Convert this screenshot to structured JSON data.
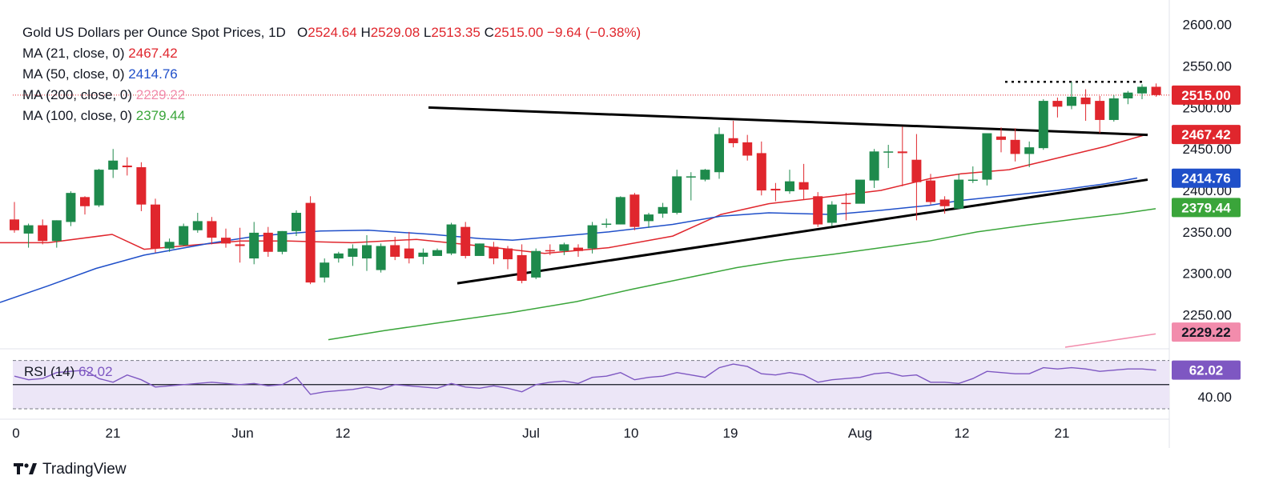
{
  "chart_data": {
    "type": "candlestick",
    "title": "Gold US Dollars per Ounce Spot Prices, 1D",
    "ohlc_summary": {
      "o_label": "O",
      "o": "2524.64",
      "h_label": "H",
      "h": "2529.08",
      "l_label": "L",
      "l": "2513.35",
      "c_label": "C",
      "c": "2515.00",
      "change": "−9.64 (−0.38%)"
    },
    "indicators": [
      {
        "label": "MA (21, close, 0)",
        "value": "2467.42",
        "color": "#e0262d"
      },
      {
        "label": "MA (50, close, 0)",
        "value": "2414.76",
        "color": "#1f4fc9"
      },
      {
        "label": "MA (200, close, 0)",
        "value": "2229.22",
        "color": "#f28cac"
      },
      {
        "label": "MA (100, close, 0)",
        "value": "2379.44",
        "color": "#3aa53a"
      }
    ],
    "price_axis": {
      "ticks": [
        "2600.00",
        "2550.00",
        "2500.00",
        "2450.00",
        "2400.00",
        "2350.00",
        "2300.00",
        "2250.00"
      ],
      "range": [
        2210,
        2620
      ]
    },
    "last_price_label": "2515.00",
    "x_labels": [
      "0",
      "21",
      "Jun",
      "12",
      "Jul",
      "10",
      "19",
      "Aug",
      "12",
      "21"
    ],
    "candles": [
      [
        2365,
        2386,
        2352,
        2349
      ],
      [
        2348,
        2360,
        2358,
        2331
      ],
      [
        2358,
        2365,
        2339,
        2335
      ],
      [
        2339,
        2364,
        2364,
        2331
      ],
      [
        2362,
        2399,
        2397,
        2357
      ],
      [
        2392,
        2393,
        2381,
        2371
      ],
      [
        2382,
        2426,
        2425,
        2380
      ],
      [
        2425,
        2450,
        2436,
        2415
      ],
      [
        2430,
        2440,
        2428,
        2418
      ],
      [
        2428,
        2434,
        2383,
        2375
      ],
      [
        2383,
        2390,
        2330,
        2325
      ],
      [
        2330,
        2342,
        2338,
        2326
      ],
      [
        2334,
        2360,
        2357,
        2333
      ],
      [
        2352,
        2373,
        2363,
        2349
      ],
      [
        2363,
        2368,
        2343,
        2335
      ],
      [
        2343,
        2354,
        2336,
        2331
      ],
      [
        2335,
        2355,
        2333,
        2313
      ],
      [
        2318,
        2362,
        2349,
        2311
      ],
      [
        2349,
        2356,
        2326,
        2320
      ],
      [
        2326,
        2351,
        2351,
        2323
      ],
      [
        2351,
        2376,
        2373,
        2345
      ],
      [
        2385,
        2393,
        2289,
        2287
      ],
      [
        2295,
        2318,
        2313,
        2289
      ],
      [
        2318,
        2326,
        2324,
        2313
      ],
      [
        2320,
        2335,
        2330,
        2309
      ],
      [
        2318,
        2346,
        2334,
        2303
      ],
      [
        2304,
        2336,
        2333,
        2301
      ],
      [
        2334,
        2344,
        2320,
        2316
      ],
      [
        2330,
        2350,
        2318,
        2312
      ],
      [
        2320,
        2330,
        2325,
        2311
      ],
      [
        2321,
        2330,
        2328,
        2322
      ],
      [
        2324,
        2361,
        2359,
        2322
      ],
      [
        2356,
        2362,
        2321,
        2318
      ],
      [
        2321,
        2336,
        2336,
        2323
      ],
      [
        2332,
        2338,
        2318,
        2311
      ],
      [
        2330,
        2333,
        2317,
        2305
      ],
      [
        2322,
        2335,
        2291,
        2288
      ],
      [
        2295,
        2330,
        2327,
        2293
      ],
      [
        2328,
        2335,
        2327,
        2322
      ],
      [
        2327,
        2337,
        2335,
        2322
      ],
      [
        2331,
        2335,
        2327,
        2320
      ],
      [
        2330,
        2362,
        2358,
        2324
      ],
      [
        2359,
        2366,
        2360,
        2355
      ],
      [
        2359,
        2393,
        2392,
        2359
      ],
      [
        2395,
        2397,
        2356,
        2352
      ],
      [
        2363,
        2373,
        2371,
        2355
      ],
      [
        2372,
        2385,
        2380,
        2367
      ],
      [
        2373,
        2425,
        2417,
        2371
      ],
      [
        2416,
        2422,
        2417,
        2388
      ],
      [
        2413,
        2426,
        2425,
        2411
      ],
      [
        2422,
        2476,
        2468,
        2414
      ],
      [
        2463,
        2484,
        2457,
        2452
      ],
      [
        2458,
        2467,
        2442,
        2436
      ],
      [
        2445,
        2459,
        2400,
        2394
      ],
      [
        2402,
        2409,
        2400,
        2387
      ],
      [
        2399,
        2425,
        2411,
        2396
      ],
      [
        2410,
        2432,
        2401,
        2389
      ],
      [
        2393,
        2398,
        2359,
        2356
      ],
      [
        2361,
        2387,
        2383,
        2357
      ],
      [
        2385,
        2397,
        2384,
        2364
      ],
      [
        2384,
        2409,
        2413,
        2385
      ],
      [
        2412,
        2450,
        2447,
        2403
      ],
      [
        2447,
        2455,
        2447,
        2427
      ],
      [
        2447,
        2477,
        2445,
        2405
      ],
      [
        2437,
        2468,
        2410,
        2364
      ],
      [
        2412,
        2420,
        2386,
        2383
      ],
      [
        2389,
        2393,
        2381,
        2372
      ],
      [
        2378,
        2420,
        2413,
        2378
      ],
      [
        2412,
        2429,
        2413,
        2409
      ],
      [
        2413,
        2467,
        2469,
        2406
      ],
      [
        2465,
        2476,
        2461,
        2446
      ],
      [
        2461,
        2475,
        2444,
        2435
      ],
      [
        2444,
        2459,
        2452,
        2428
      ],
      [
        2451,
        2510,
        2508,
        2449
      ],
      [
        2508,
        2512,
        2501,
        2488
      ],
      [
        2502,
        2531,
        2513,
        2498
      ],
      [
        2512,
        2522,
        2504,
        2484
      ],
      [
        2508,
        2514,
        2485,
        2469
      ],
      [
        2485,
        2515,
        2511,
        2483
      ],
      [
        2511,
        2520,
        2518,
        2504
      ],
      [
        2517,
        2528,
        2525,
        2510
      ],
      [
        2525,
        2529,
        2515,
        2513
      ]
    ],
    "moving_averages": {
      "ma21": [
        [
          0,
          2337
        ],
        [
          60,
          2337
        ],
        [
          140,
          2347
        ],
        [
          180,
          2329
        ],
        [
          300,
          2339
        ],
        [
          360,
          2339
        ],
        [
          440,
          2337
        ],
        [
          520,
          2341
        ],
        [
          600,
          2333
        ],
        [
          680,
          2324
        ],
        [
          760,
          2331
        ],
        [
          840,
          2345
        ],
        [
          900,
          2371
        ],
        [
          960,
          2384
        ],
        [
          1040,
          2393
        ],
        [
          1100,
          2400
        ],
        [
          1160,
          2414
        ],
        [
          1200,
          2420
        ],
        [
          1260,
          2425
        ],
        [
          1320,
          2439
        ],
        [
          1380,
          2453
        ],
        [
          1433,
          2468
        ]
      ],
      "ma50": [
        [
          0,
          2265
        ],
        [
          60,
          2285
        ],
        [
          120,
          2306
        ],
        [
          180,
          2322
        ],
        [
          260,
          2336
        ],
        [
          320,
          2345
        ],
        [
          400,
          2351
        ],
        [
          460,
          2352
        ],
        [
          540,
          2347
        ],
        [
          600,
          2342
        ],
        [
          640,
          2340
        ],
        [
          700,
          2345
        ],
        [
          760,
          2350
        ],
        [
          840,
          2359
        ],
        [
          900,
          2369
        ],
        [
          960,
          2373
        ],
        [
          1040,
          2371
        ],
        [
          1100,
          2376
        ],
        [
          1160,
          2382
        ],
        [
          1200,
          2388
        ],
        [
          1260,
          2394
        ],
        [
          1320,
          2400
        ],
        [
          1380,
          2408
        ],
        [
          1420,
          2415
        ]
      ],
      "ma100": [
        [
          410,
          2220
        ],
        [
          480,
          2231
        ],
        [
          560,
          2242
        ],
        [
          640,
          2253
        ],
        [
          720,
          2266
        ],
        [
          790,
          2281
        ],
        [
          860,
          2295
        ],
        [
          920,
          2307
        ],
        [
          980,
          2316
        ],
        [
          1040,
          2323
        ],
        [
          1100,
          2331
        ],
        [
          1160,
          2339
        ],
        [
          1220,
          2350
        ],
        [
          1280,
          2358
        ],
        [
          1340,
          2365
        ],
        [
          1400,
          2372
        ],
        [
          1443,
          2378
        ]
      ],
      "ma200": [
        [
          1330,
          2211
        ],
        [
          1380,
          2218
        ],
        [
          1443,
          2227
        ]
      ]
    },
    "trendlines": {
      "upper": [
        [
          535,
          2500
        ],
        [
          1433,
          2467
        ]
      ],
      "lower": [
        [
          571,
          2288
        ],
        [
          1433,
          2413
        ]
      ],
      "resistance_dotted": [
        [
          1255,
          2531
        ],
        [
          1428,
          2531
        ]
      ]
    },
    "ma_badges": [
      {
        "label": "2467.42",
        "price": 2467.42,
        "bg": "#e0262d",
        "fg": "#ffffff"
      },
      {
        "label": "2414.76",
        "price": 2414.76,
        "bg": "#1f4fc9",
        "fg": "#ffffff"
      },
      {
        "label": "2379.44",
        "price": 2379.44,
        "bg": "#3aa53a",
        "fg": "#ffffff"
      },
      {
        "label": "2229.22",
        "price": 2229.22,
        "bg": "#f28cac",
        "fg": "#131722"
      }
    ],
    "rsi": {
      "label": "RSI (14)",
      "value": "62.02",
      "ticks": [
        "40.00"
      ],
      "range": [
        28,
        79
      ],
      "levels": [
        70,
        50,
        30
      ],
      "values": [
        57,
        54,
        55,
        60,
        61,
        62,
        55,
        52,
        58,
        54,
        48,
        49,
        50,
        51,
        52,
        51,
        50,
        51,
        49,
        50,
        56,
        42,
        44,
        45,
        46,
        48,
        46,
        50,
        49,
        48,
        47,
        51,
        48,
        47,
        49,
        47,
        44,
        50,
        52,
        53,
        51,
        56,
        57,
        60,
        54,
        56,
        57,
        60,
        58,
        56,
        64,
        67,
        65,
        59,
        58,
        60,
        58,
        52,
        54,
        55,
        56,
        59,
        60,
        57,
        58,
        52,
        52,
        51,
        55,
        61,
        60,
        59,
        59,
        64,
        63,
        64,
        63,
        61,
        62,
        63,
        63,
        62
      ]
    },
    "colors": {
      "up": "#1e8a4c",
      "down": "#e0262d",
      "rsi": "#7e57c2",
      "rsi_band": "#ece6f7"
    }
  },
  "branding": {
    "name": "TradingView"
  }
}
